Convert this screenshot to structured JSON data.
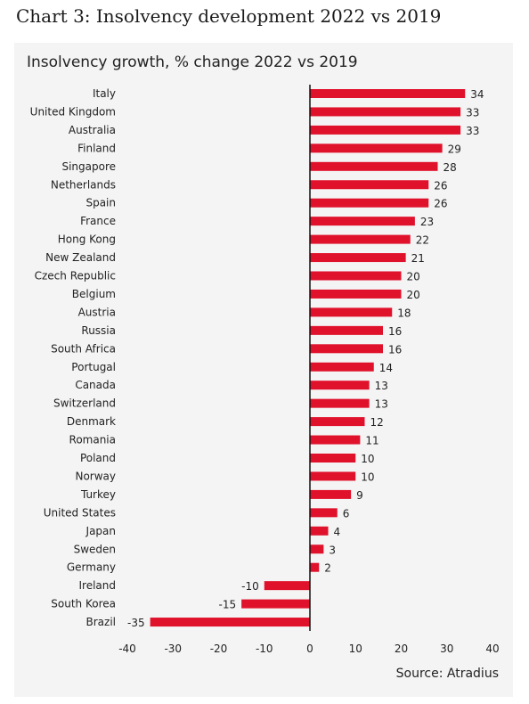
{
  "header": {
    "outer_title": "Chart 3: Insolvency development 2022 vs 2019"
  },
  "chart_data": {
    "type": "bar",
    "orientation": "horizontal",
    "title": "Insolvency growth, % change 2022 vs 2019",
    "source": "Source: Atradius",
    "categories": [
      "Italy",
      "United Kingdom",
      "Australia",
      "Finland",
      "Singapore",
      "Netherlands",
      "Spain",
      "France",
      "Hong Kong",
      "New Zealand",
      "Czech Republic",
      "Belgium",
      "Austria",
      "Russia",
      "South Africa",
      "Portugal",
      "Canada",
      "Switzerland",
      "Denmark",
      "Romania",
      "Poland",
      "Norway",
      "Turkey",
      "United States",
      "Japan",
      "Sweden",
      "Germany",
      "Ireland",
      "South Korea",
      "Brazil"
    ],
    "values": [
      34,
      33,
      33,
      29,
      28,
      26,
      26,
      23,
      22,
      21,
      20,
      20,
      18,
      16,
      16,
      14,
      13,
      13,
      12,
      11,
      10,
      10,
      9,
      6,
      4,
      3,
      2,
      -10,
      -15,
      -35
    ],
    "xlim": [
      -40,
      40
    ],
    "xticks": [
      -40,
      -30,
      -20,
      -10,
      0,
      10,
      20,
      30,
      40
    ],
    "bar_color": "#e0112b",
    "grid": false,
    "legend": "none"
  }
}
